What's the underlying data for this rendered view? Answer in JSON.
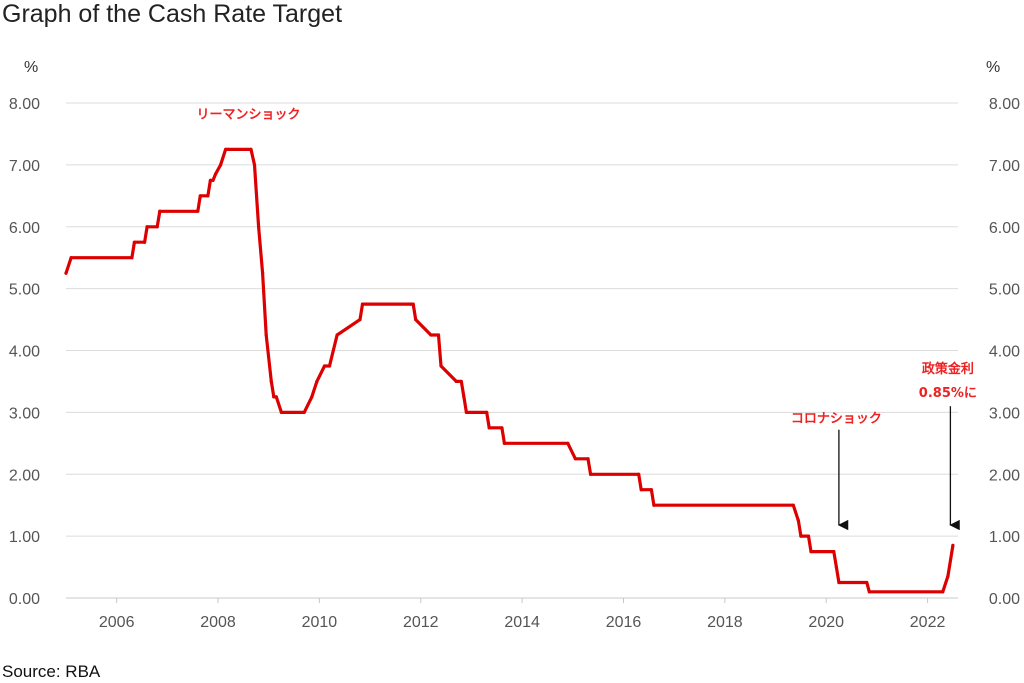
{
  "chart_data": {
    "type": "line",
    "title": "Graph of the Cash Rate Target",
    "source": "Source: RBA",
    "unit_left": "%",
    "unit_right": "%",
    "ylim": [
      0,
      8
    ],
    "xlim": [
      2005.0,
      2022.6
    ],
    "y_ticks": [
      0,
      1,
      2,
      3,
      4,
      5,
      6,
      7,
      8
    ],
    "y_tick_labels": [
      "0.00",
      "1.00",
      "2.00",
      "3.00",
      "4.00",
      "5.00",
      "6.00",
      "7.00",
      "8.00"
    ],
    "x_ticks": [
      2006,
      2008,
      2010,
      2012,
      2014,
      2016,
      2018,
      2020,
      2022
    ],
    "x_tick_labels": [
      "2006",
      "2008",
      "2010",
      "2012",
      "2014",
      "2016",
      "2018",
      "2020",
      "2022"
    ],
    "grid": true,
    "line_color": "#dd0000",
    "annotation_color": "#ee2222",
    "series": [
      {
        "x": [
          2005.0,
          2005.1,
          2006.3,
          2006.35,
          2006.55,
          2006.6,
          2006.8,
          2006.85,
          2007.6,
          2007.65,
          2007.8,
          2007.85,
          2007.9,
          2007.95,
          2008.05,
          2008.15,
          2008.2,
          2008.65,
          2008.72,
          2008.8,
          2008.88,
          2008.95,
          2009.05,
          2009.1,
          2009.15,
          2009.25,
          2009.7,
          2009.85,
          2009.95,
          2010.1,
          2010.2,
          2010.35,
          2010.8,
          2010.85,
          2011.8,
          2011.85,
          2011.9,
          2012.2,
          2012.35,
          2012.4,
          2012.7,
          2012.8,
          2012.85,
          2012.9,
          2013.3,
          2013.35,
          2013.6,
          2013.65,
          2014.9,
          2015.05,
          2015.3,
          2015.35,
          2016.3,
          2016.35,
          2016.55,
          2016.6,
          2019.35,
          2019.45,
          2019.5,
          2019.65,
          2019.7,
          2020.15,
          2020.2,
          2020.25,
          2020.8,
          2020.85,
          2022.3,
          2022.4,
          2022.5
        ],
        "y": [
          5.25,
          5.5,
          5.5,
          5.75,
          5.75,
          6.0,
          6.0,
          6.25,
          6.25,
          6.5,
          6.5,
          6.75,
          6.75,
          6.85,
          7.0,
          7.25,
          7.25,
          7.25,
          7.0,
          6.0,
          5.25,
          4.25,
          3.5,
          3.25,
          3.25,
          3.0,
          3.0,
          3.25,
          3.5,
          3.75,
          3.75,
          4.25,
          4.5,
          4.75,
          4.75,
          4.75,
          4.5,
          4.25,
          4.25,
          3.75,
          3.5,
          3.5,
          3.25,
          3.0,
          3.0,
          2.75,
          2.75,
          2.5,
          2.5,
          2.25,
          2.25,
          2.0,
          2.0,
          1.75,
          1.75,
          1.5,
          1.5,
          1.25,
          1.0,
          1.0,
          0.75,
          0.75,
          0.5,
          0.25,
          0.25,
          0.1,
          0.1,
          0.35,
          0.85
        ]
      }
    ],
    "annotations": [
      {
        "text": "リーマンショック",
        "x": 2008.6,
        "y": 7.75,
        "arrow": false
      },
      {
        "text": "コロナショック",
        "x": 2020.2,
        "y": 2.84,
        "arrow": true,
        "arrow_x": 2020.25,
        "arrow_y_from": 2.72,
        "arrow_y_to": 1.05
      },
      {
        "text": "政策金利",
        "x": 2022.4,
        "y": 3.64,
        "arrow": false
      },
      {
        "text": "0.85%に",
        "x": 2022.4,
        "y": 3.25,
        "arrow": true,
        "arrow_x": 2022.45,
        "arrow_y_from": 3.1,
        "arrow_y_to": 1.05
      }
    ]
  }
}
